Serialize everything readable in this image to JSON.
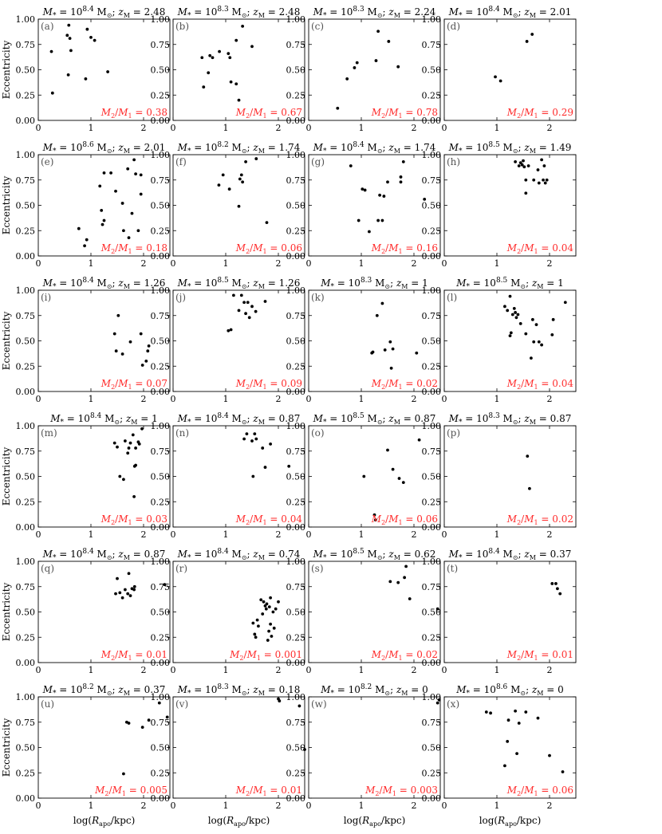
{
  "figure": {
    "ylabel": "Eccentricity",
    "xlabel": "log(R_apo/kpc)",
    "xlim": [
      0,
      2.5
    ],
    "ylim": [
      0,
      1
    ],
    "xticks": [
      0,
      1,
      2
    ],
    "yticks": [
      "0.00",
      "0.25",
      "0.50",
      "0.75",
      "1.00"
    ],
    "ratio_color": "#ff2a2a",
    "marker_color": "#000000"
  },
  "chart_data": [
    {
      "type": "scatter",
      "panel": "(a)",
      "logM": "8.4",
      "zM": "2.48",
      "ratio": "0.38",
      "points": [
        [
          0.25,
          0.68
        ],
        [
          0.27,
          0.27
        ],
        [
          0.55,
          0.84
        ],
        [
          0.57,
          0.45
        ],
        [
          0.58,
          0.94
        ],
        [
          0.6,
          0.81
        ],
        [
          0.62,
          0.69
        ],
        [
          0.9,
          0.41
        ],
        [
          0.93,
          0.9
        ],
        [
          1.0,
          0.82
        ],
        [
          1.07,
          0.79
        ],
        [
          1.32,
          0.48
        ]
      ]
    },
    {
      "type": "scatter",
      "panel": "(b)",
      "logM": "8.3",
      "zM": "2.48",
      "ratio": "0.67",
      "points": [
        [
          0.55,
          0.62
        ],
        [
          0.58,
          0.33
        ],
        [
          0.67,
          0.47
        ],
        [
          0.7,
          0.64
        ],
        [
          0.75,
          0.62
        ],
        [
          0.88,
          0.68
        ],
        [
          1.05,
          0.66
        ],
        [
          1.08,
          0.62
        ],
        [
          1.1,
          0.38
        ],
        [
          1.2,
          0.36
        ],
        [
          1.2,
          0.79
        ],
        [
          1.25,
          0.2
        ],
        [
          1.32,
          0.93
        ],
        [
          1.5,
          0.73
        ]
      ]
    },
    {
      "type": "scatter",
      "panel": "(c)",
      "logM": "8.3",
      "zM": "2.24",
      "ratio": "0.78",
      "points": [
        [
          0.55,
          0.12
        ],
        [
          0.73,
          0.41
        ],
        [
          0.87,
          0.52
        ],
        [
          0.92,
          0.57
        ],
        [
          1.28,
          0.59
        ],
        [
          1.32,
          0.88
        ],
        [
          1.52,
          0.78
        ],
        [
          1.7,
          0.53
        ]
      ]
    },
    {
      "type": "scatter",
      "panel": "(d)",
      "logM": "8.4",
      "zM": "2.01",
      "ratio": "0.29",
      "points": [
        [
          0.97,
          0.43
        ],
        [
          1.07,
          0.39
        ],
        [
          1.57,
          0.78
        ],
        [
          1.67,
          0.85
        ]
      ]
    },
    {
      "type": "scatter",
      "panel": "(e)",
      "logM": "8.6",
      "zM": "2.01",
      "ratio": "0.18",
      "points": [
        [
          0.77,
          0.27
        ],
        [
          0.88,
          0.1
        ],
        [
          0.92,
          0.16
        ],
        [
          1.17,
          0.69
        ],
        [
          1.2,
          0.45
        ],
        [
          1.22,
          0.31
        ],
        [
          1.25,
          0.35
        ],
        [
          1.25,
          0.82
        ],
        [
          1.38,
          0.82
        ],
        [
          1.47,
          0.64
        ],
        [
          1.6,
          0.52
        ],
        [
          1.62,
          0.25
        ],
        [
          1.7,
          0.86
        ],
        [
          1.72,
          0.18
        ],
        [
          1.78,
          0.42
        ],
        [
          1.82,
          0.95
        ],
        [
          1.85,
          0.81
        ],
        [
          1.9,
          0.25
        ],
        [
          1.95,
          0.61
        ],
        [
          1.95,
          0.8
        ]
      ]
    },
    {
      "type": "scatter",
      "panel": "(f)",
      "logM": "8.2",
      "zM": "1.74",
      "ratio": "0.06",
      "points": [
        [
          0.87,
          0.7
        ],
        [
          0.95,
          0.8
        ],
        [
          1.07,
          0.66
        ],
        [
          1.25,
          0.49
        ],
        [
          1.27,
          0.76
        ],
        [
          1.3,
          0.8
        ],
        [
          1.32,
          0.73
        ],
        [
          1.38,
          0.93
        ],
        [
          1.58,
          0.96
        ],
        [
          1.78,
          0.33
        ]
      ]
    },
    {
      "type": "scatter",
      "panel": "(g)",
      "logM": "8.4",
      "zM": "1.74",
      "ratio": "0.16",
      "points": [
        [
          0.8,
          0.89
        ],
        [
          0.95,
          0.35
        ],
        [
          1.02,
          0.66
        ],
        [
          1.07,
          0.65
        ],
        [
          1.15,
          0.24
        ],
        [
          1.32,
          0.35
        ],
        [
          1.35,
          0.6
        ],
        [
          1.4,
          0.35
        ],
        [
          1.43,
          0.59
        ],
        [
          1.5,
          0.73
        ],
        [
          1.75,
          0.73
        ],
        [
          1.75,
          0.78
        ],
        [
          1.8,
          0.93
        ],
        [
          2.2,
          0.56
        ]
      ]
    },
    {
      "type": "scatter",
      "panel": "(h)",
      "logM": "8.5",
      "zM": "1.49",
      "ratio": "0.04",
      "points": [
        [
          1.35,
          0.93
        ],
        [
          1.42,
          0.89
        ],
        [
          1.45,
          0.92
        ],
        [
          1.48,
          0.9
        ],
        [
          1.5,
          0.94
        ],
        [
          1.52,
          0.88
        ],
        [
          1.55,
          0.75
        ],
        [
          1.55,
          0.62
        ],
        [
          1.6,
          0.89
        ],
        [
          1.7,
          0.75
        ],
        [
          1.78,
          0.85
        ],
        [
          1.8,
          0.72
        ],
        [
          1.85,
          0.95
        ],
        [
          1.88,
          0.75
        ],
        [
          1.9,
          0.89
        ],
        [
          1.92,
          0.72
        ],
        [
          1.95,
          0.75
        ]
      ]
    },
    {
      "type": "scatter",
      "panel": "(i)",
      "logM": "8.4",
      "zM": "1.26",
      "ratio": "0.07",
      "points": [
        [
          1.45,
          0.57
        ],
        [
          1.48,
          0.4
        ],
        [
          1.52,
          0.75
        ],
        [
          1.6,
          0.37
        ],
        [
          1.75,
          0.49
        ],
        [
          1.95,
          0.57
        ],
        [
          1.98,
          0.26
        ],
        [
          2.05,
          0.3
        ],
        [
          2.08,
          0.4
        ],
        [
          2.1,
          0.45
        ]
      ]
    },
    {
      "type": "scatter",
      "panel": "(j)",
      "logM": "8.5",
      "zM": "1.26",
      "ratio": "0.09",
      "points": [
        [
          1.05,
          0.6
        ],
        [
          1.1,
          0.61
        ],
        [
          1.15,
          0.95
        ],
        [
          1.25,
          0.8
        ],
        [
          1.3,
          0.95
        ],
        [
          1.35,
          0.88
        ],
        [
          1.38,
          0.77
        ],
        [
          1.42,
          0.88
        ],
        [
          1.45,
          0.73
        ],
        [
          1.5,
          0.84
        ],
        [
          1.57,
          0.79
        ],
        [
          1.75,
          0.89
        ]
      ]
    },
    {
      "type": "scatter",
      "panel": "(k)",
      "logM": "8.3",
      "zM": "1",
      "ratio": "0.02",
      "points": [
        [
          1.2,
          0.38
        ],
        [
          1.22,
          0.39
        ],
        [
          1.3,
          0.75
        ],
        [
          1.4,
          0.87
        ],
        [
          1.45,
          0.41
        ],
        [
          1.55,
          0.49
        ],
        [
          1.57,
          0.23
        ],
        [
          1.6,
          0.42
        ],
        [
          2.05,
          0.38
        ]
      ]
    },
    {
      "type": "scatter",
      "panel": "(l)",
      "logM": "8.5",
      "zM": "1",
      "ratio": "0.04",
      "points": [
        [
          1.15,
          0.84
        ],
        [
          1.2,
          0.8
        ],
        [
          1.25,
          0.94
        ],
        [
          1.25,
          0.55
        ],
        [
          1.27,
          0.58
        ],
        [
          1.3,
          0.76
        ],
        [
          1.33,
          0.82
        ],
        [
          1.35,
          0.78
        ],
        [
          1.37,
          0.73
        ],
        [
          1.4,
          0.76
        ],
        [
          1.45,
          0.67
        ],
        [
          1.55,
          0.57
        ],
        [
          1.65,
          0.33
        ],
        [
          1.68,
          0.71
        ],
        [
          1.7,
          0.49
        ],
        [
          1.75,
          0.66
        ],
        [
          1.8,
          0.49
        ],
        [
          1.85,
          0.46
        ],
        [
          2.05,
          0.56
        ],
        [
          2.07,
          0.71
        ],
        [
          2.3,
          0.88
        ]
      ]
    },
    {
      "type": "scatter",
      "panel": "(m)",
      "logM": "8.4",
      "zM": "1",
      "ratio": "0.03",
      "points": [
        [
          1.45,
          0.83
        ],
        [
          1.5,
          0.79
        ],
        [
          1.55,
          0.5
        ],
        [
          1.62,
          0.47
        ],
        [
          1.65,
          0.85
        ],
        [
          1.7,
          0.73
        ],
        [
          1.72,
          0.78
        ],
        [
          1.75,
          0.83
        ],
        [
          1.8,
          0.91
        ],
        [
          1.82,
          0.3
        ],
        [
          1.83,
          0.6
        ],
        [
          1.85,
          0.61
        ],
        [
          1.85,
          0.78
        ],
        [
          1.9,
          0.84
        ],
        [
          1.92,
          0.82
        ],
        [
          1.97,
          0.97
        ]
      ]
    },
    {
      "type": "scatter",
      "panel": "(n)",
      "logM": "8.4",
      "zM": "0.87",
      "ratio": "0.04",
      "points": [
        [
          1.35,
          0.87
        ],
        [
          1.4,
          0.92
        ],
        [
          1.5,
          0.85
        ],
        [
          1.52,
          0.5
        ],
        [
          1.55,
          0.92
        ],
        [
          1.58,
          0.87
        ],
        [
          1.7,
          0.78
        ],
        [
          1.75,
          0.59
        ],
        [
          1.85,
          0.82
        ],
        [
          2.2,
          0.6
        ]
      ]
    },
    {
      "type": "scatter",
      "panel": "(o)",
      "logM": "8.5",
      "zM": "0.87",
      "ratio": "0.06",
      "points": [
        [
          1.05,
          0.5
        ],
        [
          1.25,
          0.12
        ],
        [
          1.27,
          0.07
        ],
        [
          1.5,
          0.76
        ],
        [
          1.6,
          0.57
        ],
        [
          1.72,
          0.48
        ],
        [
          1.8,
          0.44
        ],
        [
          2.1,
          0.86
        ]
      ]
    },
    {
      "type": "scatter",
      "panel": "(p)",
      "logM": "8.3",
      "zM": "0.87",
      "ratio": "0.02",
      "points": [
        [
          1.58,
          0.7
        ],
        [
          1.62,
          0.38
        ]
      ]
    },
    {
      "type": "scatter",
      "panel": "(q)",
      "logM": "8.4",
      "zM": "0.87",
      "ratio": "0.01",
      "points": [
        [
          1.47,
          0.68
        ],
        [
          1.5,
          0.83
        ],
        [
          1.55,
          0.69
        ],
        [
          1.6,
          0.64
        ],
        [
          1.65,
          0.72
        ],
        [
          1.7,
          0.68
        ],
        [
          1.72,
          0.88
        ],
        [
          1.75,
          0.66
        ],
        [
          1.78,
          0.73
        ],
        [
          1.82,
          0.72
        ],
        [
          1.83,
          0.75
        ],
        [
          2.4,
          0.77
        ]
      ]
    },
    {
      "type": "scatter",
      "panel": "(r)",
      "logM": "8.4",
      "zM": "0.74",
      "ratio": "0.001",
      "points": [
        [
          1.52,
          0.39
        ],
        [
          1.55,
          0.28
        ],
        [
          1.57,
          0.25
        ],
        [
          1.6,
          0.42
        ],
        [
          1.62,
          0.36
        ],
        [
          1.67,
          0.62
        ],
        [
          1.7,
          0.48
        ],
        [
          1.72,
          0.6
        ],
        [
          1.75,
          0.56
        ],
        [
          1.77,
          0.53
        ],
        [
          1.78,
          0.58
        ],
        [
          1.8,
          0.22
        ],
        [
          1.82,
          0.31
        ],
        [
          1.83,
          0.55
        ],
        [
          1.85,
          0.38
        ],
        [
          1.85,
          0.64
        ],
        [
          1.87,
          0.26
        ],
        [
          1.9,
          0.5
        ],
        [
          1.92,
          0.34
        ],
        [
          1.95,
          0.53
        ],
        [
          2.0,
          0.6
        ]
      ]
    },
    {
      "type": "scatter",
      "panel": "(s)",
      "logM": "8.5",
      "zM": "0.62",
      "ratio": "0.02",
      "points": [
        [
          1.55,
          0.8
        ],
        [
          1.7,
          0.79
        ],
        [
          1.82,
          0.84
        ],
        [
          1.85,
          0.95
        ],
        [
          1.92,
          0.63
        ],
        [
          2.45,
          0.53
        ]
      ]
    },
    {
      "type": "scatter",
      "panel": "(t)",
      "logM": "8.4",
      "zM": "0.37",
      "ratio": "0.01",
      "points": [
        [
          2.05,
          0.78
        ],
        [
          2.12,
          0.78
        ],
        [
          2.15,
          0.73
        ],
        [
          2.2,
          0.68
        ]
      ]
    },
    {
      "type": "scatter",
      "panel": "(u)",
      "logM": "8.2",
      "zM": "0.37",
      "ratio": "0.005",
      "points": [
        [
          1.62,
          0.24
        ],
        [
          1.68,
          0.75
        ],
        [
          1.72,
          0.74
        ],
        [
          1.98,
          0.7
        ],
        [
          2.1,
          0.77
        ],
        [
          2.3,
          0.94
        ],
        [
          2.45,
          0.8
        ]
      ]
    },
    {
      "type": "scatter",
      "panel": "(v)",
      "logM": "8.3",
      "zM": "0.18",
      "ratio": "0.01",
      "points": [
        [
          2.0,
          0.98
        ],
        [
          2.02,
          0.96
        ],
        [
          2.4,
          0.91
        ],
        [
          2.5,
          0.48
        ]
      ]
    },
    {
      "type": "scatter",
      "panel": "(w)",
      "logM": "8.2",
      "zM": "0",
      "ratio": "0.003",
      "points": [
        [
          2.45,
          0.94
        ],
        [
          2.48,
          0.97
        ]
      ]
    },
    {
      "type": "scatter",
      "panel": "(x)",
      "logM": "8.6",
      "zM": "0",
      "ratio": "0.06",
      "points": [
        [
          0.8,
          0.85
        ],
        [
          0.88,
          0.84
        ],
        [
          1.15,
          0.32
        ],
        [
          1.2,
          0.56
        ],
        [
          1.22,
          0.77
        ],
        [
          1.35,
          0.86
        ],
        [
          1.38,
          0.44
        ],
        [
          1.42,
          0.74
        ],
        [
          1.55,
          0.85
        ],
        [
          1.78,
          0.79
        ],
        [
          2.0,
          0.42
        ],
        [
          2.25,
          0.26
        ]
      ]
    }
  ]
}
